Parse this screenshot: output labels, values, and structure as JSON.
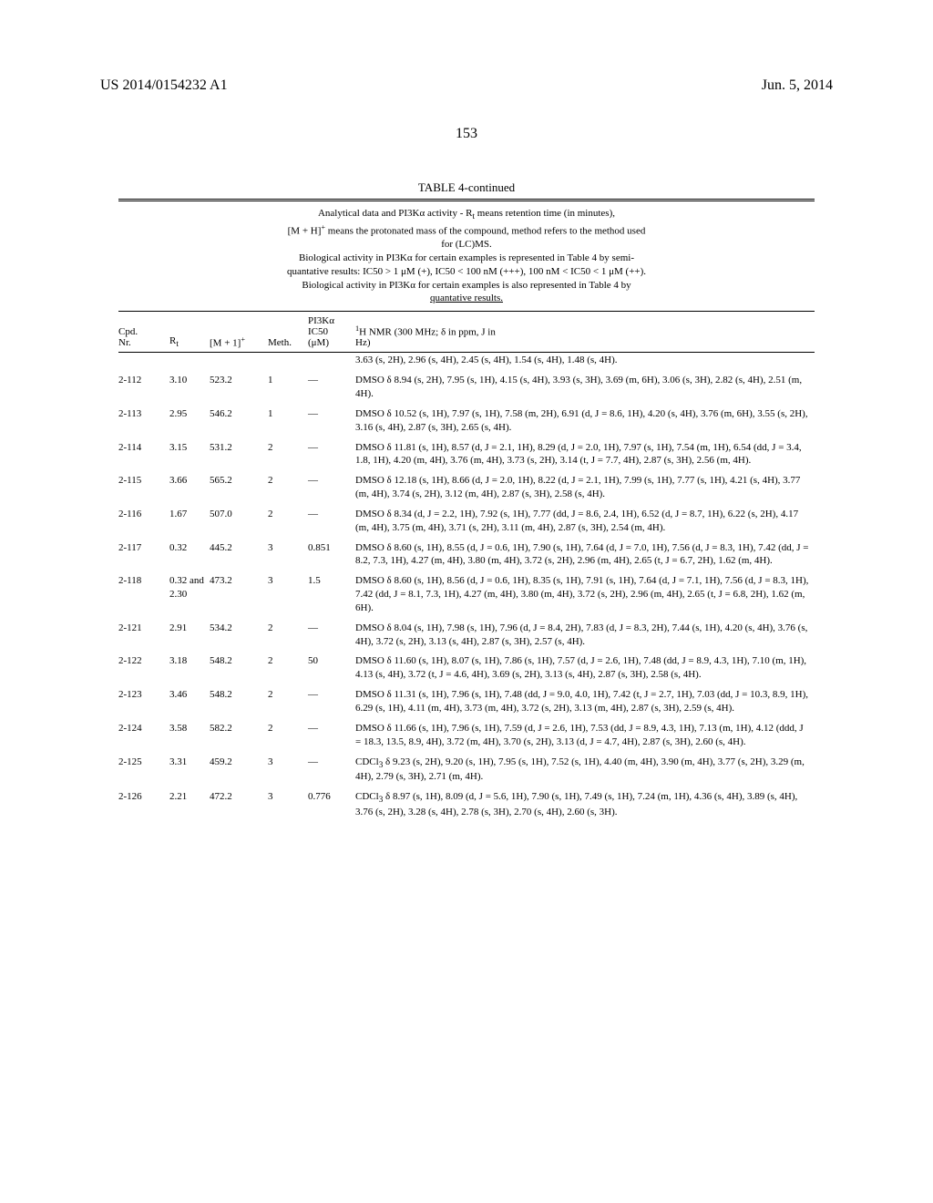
{
  "header": {
    "left": "US 2014/0154232 A1",
    "right": "Jun. 5, 2014"
  },
  "page_number": "153",
  "table": {
    "title": "TABLE 4-continued",
    "caption_lines": [
      "Analytical data and PI3Kα activity - R<sub>t</sub> means retention time (in minutes),",
      "[M + H]<sup>+</sup> means the protonated mass of the compound, method refers to the method used",
      "for (LC)MS.",
      "Biological activity in PI3Kα for certain examples is represented in Table 4 by semi-",
      "quantative results: IC50 &gt; 1 μM (+), IC50 &lt; 100 nM (+++), 100 nM &lt; IC50 &lt; 1 μM (++).",
      "Biological activity in PI3Kα for certain examples is also represented in Table 4 by",
      "quantative results."
    ],
    "columns": {
      "cpd": "Cpd.\nNr.",
      "rt": "R<sub>t</sub>",
      "m1": "[M + 1]<sup>+</sup>",
      "meth": "Meth.",
      "ic50": "PI3Kα\nIC50\n(μM)",
      "nmr": "<sup>1</sup>H NMR (300 MHz; δ in ppm, J in\nHz)"
    },
    "rows": [
      {
        "cpd": "",
        "rt": "",
        "m1": "",
        "meth": "",
        "ic50": "",
        "nmr": "3.63 (s, 2H), 2.96 (s, 4H), 2.45 (s, 4H), 1.54 (s, 4H), 1.48 (s, 4H)."
      },
      {
        "cpd": "2-112",
        "rt": "3.10",
        "m1": "523.2",
        "meth": "1",
        "ic50": "—",
        "nmr": "DMSO δ 8.94 (s, 2H), 7.95 (s, 1H), 4.15 (s, 4H), 3.93 (s, 3H), 3.69 (m, 6H), 3.06 (s, 3H), 2.82 (s, 4H), 2.51 (m, 4H)."
      },
      {
        "cpd": "2-113",
        "rt": "2.95",
        "m1": "546.2",
        "meth": "1",
        "ic50": "—",
        "nmr": "DMSO δ 10.52 (s, 1H), 7.97 (s, 1H), 7.58 (m, 2H), 6.91 (d, J = 8.6, 1H), 4.20 (s, 4H), 3.76 (m, 6H), 3.55 (s, 2H), 3.16 (s, 4H), 2.87 (s, 3H), 2.65 (s, 4H)."
      },
      {
        "cpd": "2-114",
        "rt": "3.15",
        "m1": "531.2",
        "meth": "2",
        "ic50": "—",
        "nmr": "DMSO δ 11.81 (s, 1H), 8.57 (d, J = 2.1, 1H), 8.29 (d, J = 2.0, 1H), 7.97 (s, 1H), 7.54 (m, 1H), 6.54 (dd, J = 3.4, 1.8, 1H), 4.20 (m, 4H), 3.76 (m, 4H), 3.73 (s, 2H), 3.14 (t, J = 7.7, 4H), 2.87 (s, 3H), 2.56 (m, 4H)."
      },
      {
        "cpd": "2-115",
        "rt": "3.66",
        "m1": "565.2",
        "meth": "2",
        "ic50": "—",
        "nmr": "DMSO δ 12.18 (s, 1H), 8.66 (d, J = 2.0, 1H), 8.22 (d, J = 2.1, 1H), 7.99 (s, 1H), 7.77 (s, 1H), 4.21 (s, 4H), 3.77 (m, 4H), 3.74 (s, 2H), 3.12 (m, 4H), 2.87 (s, 3H), 2.58 (s, 4H)."
      },
      {
        "cpd": "2-116",
        "rt": "1.67",
        "m1": "507.0",
        "meth": "2",
        "ic50": "—",
        "nmr": "DMSO δ 8.34 (d, J = 2.2, 1H), 7.92 (s, 1H), 7.77 (dd, J = 8.6, 2.4, 1H), 6.52 (d, J = 8.7, 1H), 6.22 (s, 2H), 4.17 (m, 4H), 3.75 (m, 4H), 3.71 (s, 2H), 3.11 (m, 4H), 2.87 (s, 3H), 2.54 (m, 4H)."
      },
      {
        "cpd": "2-117",
        "rt": "0.32",
        "m1": "445.2",
        "meth": "3",
        "ic50": "0.851",
        "nmr": "DMSO δ 8.60 (s, 1H), 8.55 (d, J = 0.6, 1H), 7.90 (s, 1H), 7.64 (d, J = 7.0, 1H), 7.56 (d, J = 8.3, 1H), 7.42 (dd, J = 8.2, 7.3, 1H), 4.27 (m, 4H), 3.80 (m, 4H), 3.72 (s, 2H), 2.96 (m, 4H), 2.65 (t, J = 6.7, 2H), 1.62 (m, 4H)."
      },
      {
        "cpd": "2-118",
        "rt": "0.32 and 2.30",
        "m1": "473.2",
        "meth": "3",
        "ic50": "1.5",
        "nmr": "DMSO δ 8.60 (s, 1H), 8.56 (d, J = 0.6, 1H), 8.35 (s, 1H), 7.91 (s, 1H), 7.64 (d, J = 7.1, 1H), 7.56 (d, J = 8.3, 1H), 7.42 (dd, J = 8.1, 7.3, 1H), 4.27 (m, 4H), 3.80 (m, 4H), 3.72 (s, 2H), 2.96 (m, 4H), 2.65 (t, J = 6.8, 2H), 1.62 (m, 6H)."
      },
      {
        "cpd": "2-121",
        "rt": "2.91",
        "m1": "534.2",
        "meth": "2",
        "ic50": "—",
        "nmr": "DMSO δ 8.04 (s, 1H), 7.98 (s, 1H), 7.96 (d, J = 8.4, 2H), 7.83 (d, J = 8.3, 2H), 7.44 (s, 1H), 4.20 (s, 4H), 3.76 (s, 4H), 3.72 (s, 2H), 3.13 (s, 4H), 2.87 (s, 3H), 2.57 (s, 4H)."
      },
      {
        "cpd": "2-122",
        "rt": "3.18",
        "m1": "548.2",
        "meth": "2",
        "ic50": "50",
        "nmr": "DMSO δ 11.60 (s, 1H), 8.07 (s, 1H), 7.86 (s, 1H), 7.57 (d, J = 2.6, 1H), 7.48 (dd, J = 8.9, 4.3, 1H), 7.10 (m, 1H), 4.13 (s, 4H), 3.72 (t, J = 4.6, 4H), 3.69 (s, 2H), 3.13 (s, 4H), 2.87 (s, 3H), 2.58 (s, 4H)."
      },
      {
        "cpd": "2-123",
        "rt": "3.46",
        "m1": "548.2",
        "meth": "2",
        "ic50": "—",
        "nmr": "DMSO δ 11.31 (s, 1H), 7.96 (s, 1H), 7.48 (dd, J = 9.0, 4.0, 1H), 7.42 (t, J = 2.7, 1H), 7.03 (dd, J = 10.3, 8.9, 1H), 6.29 (s, 1H), 4.11 (m, 4H), 3.73 (m, 4H), 3.72 (s, 2H), 3.13 (m, 4H), 2.87 (s, 3H), 2.59 (s, 4H)."
      },
      {
        "cpd": "2-124",
        "rt": "3.58",
        "m1": "582.2",
        "meth": "2",
        "ic50": "—",
        "nmr": "DMSO δ 11.66 (s, 1H), 7.96 (s, 1H), 7.59 (d, J = 2.6, 1H), 7.53 (dd, J = 8.9, 4.3, 1H), 7.13 (m, 1H), 4.12 (ddd, J = 18.3, 13.5, 8.9, 4H), 3.72 (m, 4H), 3.70 (s, 2H), 3.13 (d, J = 4.7, 4H), 2.87 (s, 3H), 2.60 (s, 4H)."
      },
      {
        "cpd": "2-125",
        "rt": "3.31",
        "m1": "459.2",
        "meth": "3",
        "ic50": "—",
        "nmr": "CDCl<sub>3</sub> δ 9.23 (s, 2H), 9.20 (s, 1H), 7.95 (s, 1H), 7.52 (s, 1H), 4.40 (m, 4H), 3.90 (m, 4H), 3.77 (s, 2H), 3.29 (m, 4H), 2.79 (s, 3H), 2.71 (m, 4H)."
      },
      {
        "cpd": "2-126",
        "rt": "2.21",
        "m1": "472.2",
        "meth": "3",
        "ic50": "0.776",
        "nmr": "CDCl<sub>3</sub> δ 8.97 (s, 1H), 8.09 (d, J = 5.6, 1H), 7.90 (s, 1H), 7.49 (s, 1H), 7.24 (m, 1H), 4.36 (s, 4H), 3.89 (s, 4H), 3.76 (s, 2H), 3.28 (s, 4H), 2.78 (s, 3H), 2.70 (s, 4H), 2.60 (s, 3H)."
      }
    ]
  }
}
